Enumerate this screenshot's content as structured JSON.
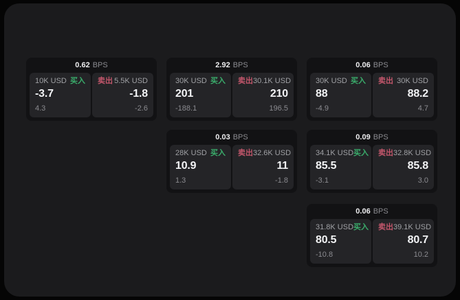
{
  "labels": {
    "buy": "买入",
    "sell": "卖出",
    "bps": "BPS"
  },
  "colors": {
    "page_bg": "#050505",
    "surface_bg": "#1b1b1d",
    "card_bg": "#121214",
    "panel_bg": "#242427",
    "buy_green": "#3aac6b",
    "sell_red": "#c2566b",
    "primary_text": "#f2f3f5",
    "muted_text": "#8b8b90"
  },
  "cards": [
    {
      "bps": "0.62",
      "buy": {
        "amount": "10K USD",
        "price": "-3.7",
        "delta": "4.3"
      },
      "sell": {
        "amount": "5.5K USD",
        "price": "-1.8",
        "delta": "-2.6"
      }
    },
    {
      "bps": "2.92",
      "buy": {
        "amount": "30K USD",
        "price": "201",
        "delta": "-188.1"
      },
      "sell": {
        "amount": "30.1K USD",
        "price": "210",
        "delta": "196.5"
      }
    },
    {
      "bps": "0.06",
      "buy": {
        "amount": "30K USD",
        "price": "88",
        "delta": "-4.9"
      },
      "sell": {
        "amount": "30K USD",
        "price": "88.2",
        "delta": "4.7"
      }
    },
    {
      "bps": "0.03",
      "buy": {
        "amount": "28K USD",
        "price": "10.9",
        "delta": "1.3"
      },
      "sell": {
        "amount": "32.6K USD",
        "price": "11",
        "delta": "-1.8"
      }
    },
    {
      "bps": "0.09",
      "buy": {
        "amount": "34.1K USD",
        "price": "85.5",
        "delta": "-3.1"
      },
      "sell": {
        "amount": "32.8K USD",
        "price": "85.8",
        "delta": "3.0"
      }
    },
    {
      "bps": "0.06",
      "buy": {
        "amount": "31.8K USD",
        "price": "80.5",
        "delta": "-10.8"
      },
      "sell": {
        "amount": "39.1K USD",
        "price": "80.7",
        "delta": "10.2"
      }
    }
  ]
}
